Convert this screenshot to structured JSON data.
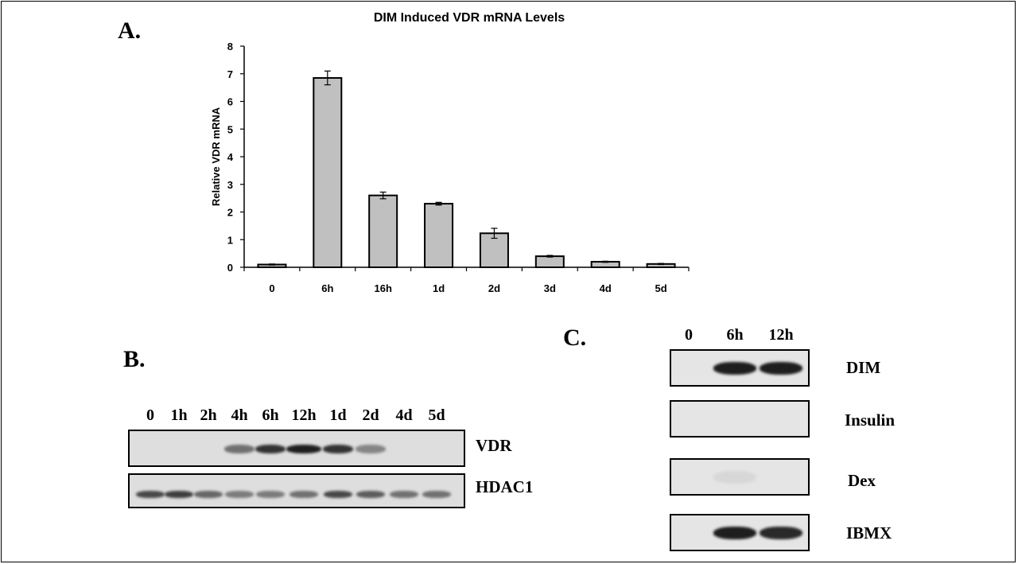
{
  "panel_a": {
    "letter": "A."
  },
  "panel_b": {
    "letter": "B.",
    "lanes": [
      "0",
      "1h",
      "2h",
      "4h",
      "6h",
      "12h",
      "1d",
      "2d",
      "4d",
      "5d"
    ],
    "rows": [
      {
        "label": "VDR",
        "band_intensity": [
          0,
          0,
          0,
          0.55,
          0.85,
          0.95,
          0.85,
          0.45,
          0,
          0
        ]
      },
      {
        "label": "HDAC1",
        "band_intensity": [
          0.75,
          0.8,
          0.6,
          0.5,
          0.5,
          0.55,
          0.75,
          0.65,
          0.55,
          0.55
        ]
      }
    ]
  },
  "panel_c": {
    "letter": "C.",
    "lanes": [
      "0",
      "6h",
      "12h"
    ],
    "rows": [
      {
        "label": "DIM",
        "band_intensity": [
          0,
          0.95,
          0.95
        ]
      },
      {
        "label": "Insulin",
        "band_intensity": [
          0,
          0,
          0
        ]
      },
      {
        "label": "Dex",
        "band_intensity": [
          0,
          0.05,
          0
        ]
      },
      {
        "label": "IBMX",
        "band_intensity": [
          0,
          0.95,
          0.9
        ]
      }
    ]
  },
  "chart_data": {
    "type": "bar",
    "title": "DIM Induced VDR mRNA Levels",
    "xlabel": "",
    "ylabel": "Relative VDR mRNA",
    "categories": [
      "0",
      "6h",
      "16h",
      "1d",
      "2d",
      "3d",
      "4d",
      "5d"
    ],
    "values": [
      0.1,
      6.85,
      2.6,
      2.3,
      1.23,
      0.4,
      0.2,
      0.12
    ],
    "error": [
      0.02,
      0.25,
      0.12,
      0.05,
      0.18,
      0.03,
      0.02,
      0.02
    ],
    "ylim": [
      0,
      8
    ],
    "yticks": [
      0,
      1,
      2,
      3,
      4,
      5,
      6,
      7,
      8
    ],
    "bar_color": "#c0c0c0",
    "grid": false,
    "legend": "none"
  }
}
